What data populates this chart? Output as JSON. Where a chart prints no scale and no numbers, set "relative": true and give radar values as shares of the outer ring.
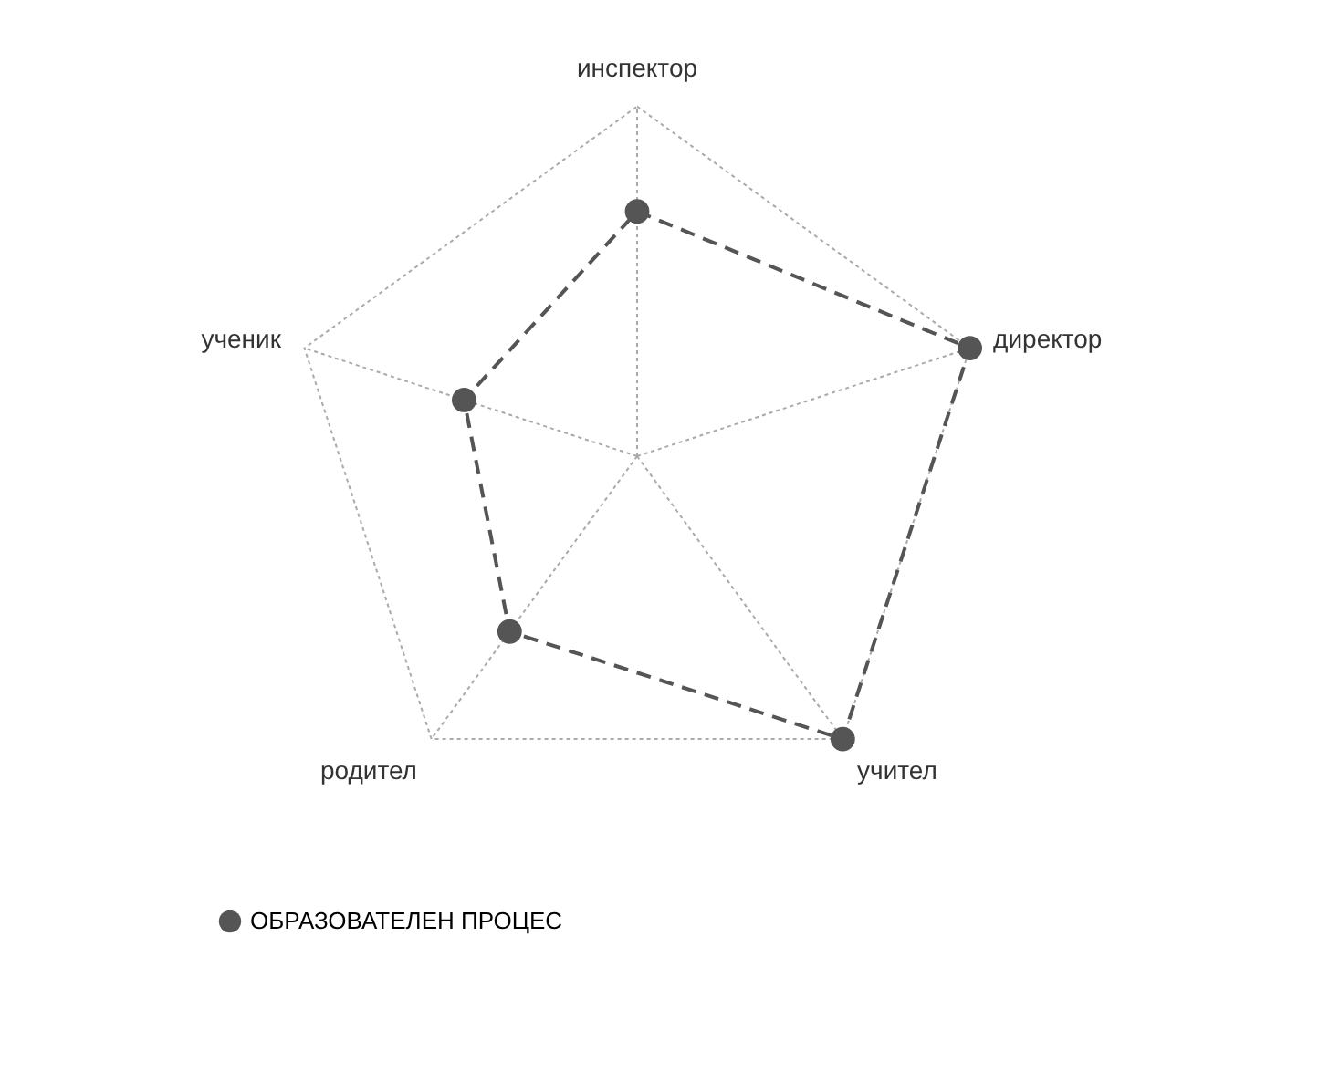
{
  "chart_data": {
    "type": "radar",
    "relative": true,
    "categories": [
      "инспектор",
      "директор",
      "учител",
      "родител",
      "ученик"
    ],
    "series": [
      {
        "name": "ОБРАЗОВАТЕЛЕН ПРОЦЕС",
        "color": "#555555",
        "values": [
          0.7,
          1,
          1,
          0.62,
          0.52
        ]
      }
    ],
    "grid": true,
    "legend": "bottom",
    "marker": "circle",
    "line_style": "dashed"
  }
}
